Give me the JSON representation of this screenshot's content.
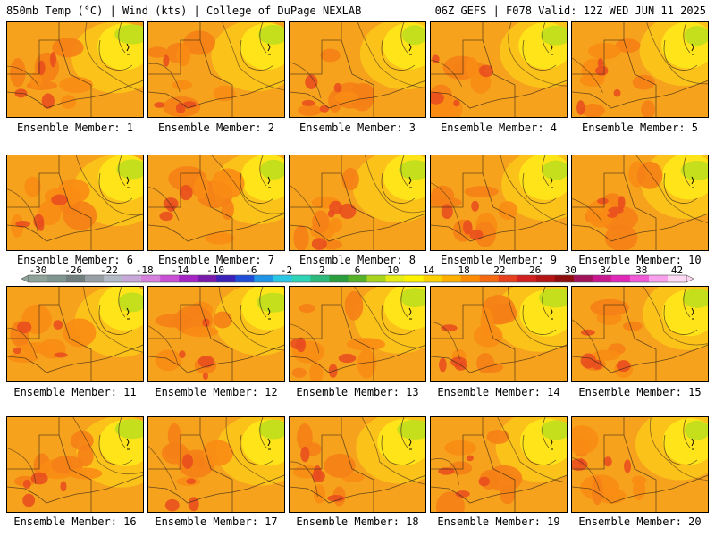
{
  "header": {
    "left": "850mb Temp (°C) | Wind (kts) | College of DuPage NEXLAB",
    "right": "06Z GEFS | F078 Valid: 12Z WED JUN 11 2025"
  },
  "members": [
    "Ensemble Member: 1",
    "Ensemble Member: 2",
    "Ensemble Member: 3",
    "Ensemble Member: 4",
    "Ensemble Member: 5",
    "Ensemble Member: 6",
    "Ensemble Member: 7",
    "Ensemble Member: 8",
    "Ensemble Member: 9",
    "Ensemble Member: 10",
    "Ensemble Member: 11",
    "Ensemble Member: 12",
    "Ensemble Member: 13",
    "Ensemble Member: 14",
    "Ensemble Member: 15",
    "Ensemble Member: 16",
    "Ensemble Member: 17",
    "Ensemble Member: 18",
    "Ensemble Member: 19",
    "Ensemble Member: 20"
  ],
  "colorbar": {
    "ticks": [
      "-30",
      "-26",
      "-22",
      "-18",
      "-14",
      "-10",
      "-6",
      "-2",
      "2",
      "6",
      "10",
      "14",
      "18",
      "22",
      "26",
      "30",
      "34",
      "38",
      "42"
    ],
    "colors": [
      "#8fa39a",
      "#7f9690",
      "#707f7d",
      "#99a0a5",
      "#b3bac7",
      "#c8a8d8",
      "#d67fdd",
      "#c94fd4",
      "#a524c4",
      "#7a1aab",
      "#3b21b8",
      "#1f4fd6",
      "#1e95e6",
      "#2bc8e6",
      "#2fd3b5",
      "#2bba7a",
      "#2a9e3c",
      "#56b229",
      "#a8d41e",
      "#e6ec14",
      "#fff200",
      "#ffd000",
      "#ffb000",
      "#ff8c00",
      "#f56a10",
      "#e6401e",
      "#d12020",
      "#b31414",
      "#8e0e0e",
      "#a0125a",
      "#c81890",
      "#e028b8",
      "#f05ad8",
      "#f8a0ec",
      "#ffd8f4"
    ]
  }
}
